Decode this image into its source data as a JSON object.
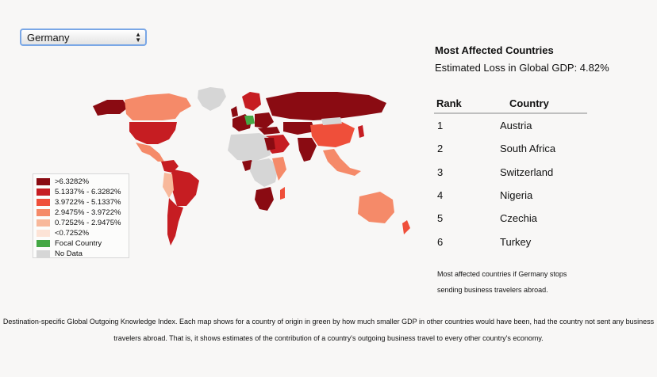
{
  "selector": {
    "selected": "Germany"
  },
  "legend": {
    "items": [
      {
        "label": ">6.3282%",
        "color": "#8a0b12"
      },
      {
        "label": "5.1337% - 6.3282%",
        "color": "#c61d22"
      },
      {
        "label": "3.9722% - 5.1337%",
        "color": "#ef4f3a"
      },
      {
        "label": "2.9475% - 3.9722%",
        "color": "#f58a69"
      },
      {
        "label": "0.7252% - 2.9475%",
        "color": "#f8b89b"
      },
      {
        "label": "<0.7252%",
        "color": "#fde3d6"
      },
      {
        "label": "Focal Country",
        "color": "#45a845"
      },
      {
        "label": "No Data",
        "color": "#d6d6d6"
      }
    ]
  },
  "panel": {
    "title": "Most Affected Countries",
    "subtitle": "Estimated Loss in Global GDP: 4.82%",
    "col_rank": "Rank",
    "col_country": "Country",
    "rows": [
      {
        "rank": "1",
        "country": "Austria"
      },
      {
        "rank": "2",
        "country": "South Africa"
      },
      {
        "rank": "3",
        "country": "Switzerland"
      },
      {
        "rank": "4",
        "country": "Nigeria"
      },
      {
        "rank": "5",
        "country": "Czechia"
      },
      {
        "rank": "6",
        "country": "Turkey"
      }
    ],
    "note": "Most affected countries if Germany stops sending business travelers abroad."
  },
  "caption": "Destination-specific Global Outgoing Knowledge Index. Each map shows for a country of origin in green by how much smaller GDP in other countries would have been, had the country not sent any business travelers abroad. That is, it shows estimates of the contribution of a country's outgoing business travel to every other country's economy."
}
